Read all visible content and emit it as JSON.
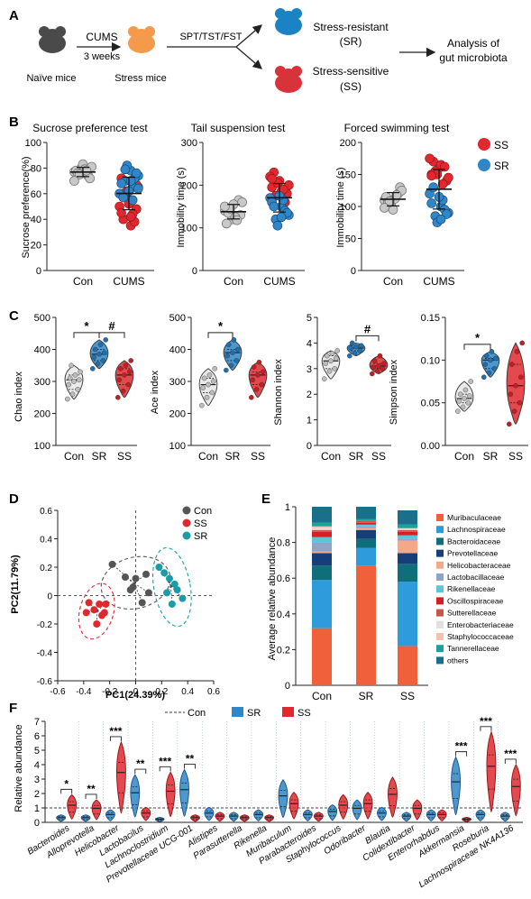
{
  "colors": {
    "con": "#c8c8c8",
    "sr": "#2f86c8",
    "ss": "#e0282e",
    "orange": "#f59a4a",
    "gray": "#555555"
  },
  "panel_a": {
    "letter": "A",
    "cums": "CUMS",
    "weeks": "3 weeks",
    "naive": "Naïve mice",
    "stress": "Stress mice",
    "tests": "SPT/TST/FST",
    "sr_line1": "Stress-resistant",
    "sr_line2": "(SR)",
    "ss_line1": "Stress-sensitive",
    "ss_line2": "(SS)",
    "analysis_line1": "Analysis of",
    "analysis_line2": "gut microbiota",
    "icons": [
      "mouse-gray-icon",
      "mouse-orange-icon",
      "mouse-blue-icon",
      "mouse-red-icon"
    ]
  },
  "panel_b": {
    "letter": "B",
    "legend": {
      "ss": "SS",
      "sr": "SR"
    },
    "charts": [
      {
        "title": "Sucrose preference test",
        "ylabel": "Sucrose preference(%)",
        "yticks": [
          "0",
          "20",
          "40",
          "60",
          "80",
          "100"
        ],
        "categories": [
          "Con",
          "CUMS"
        ]
      },
      {
        "title": "Tail suspension test",
        "ylabel": "Immobility time (s)",
        "yticks": [
          "0",
          "100",
          "200",
          "300"
        ],
        "categories": [
          "Con",
          "CUMS"
        ]
      },
      {
        "title": "Forced swimming test",
        "ylabel": "Immobility time (s)",
        "yticks": [
          "0",
          "50",
          "100",
          "150",
          "200"
        ],
        "categories": [
          "Con",
          "CUMS"
        ]
      }
    ]
  },
  "panel_c": {
    "letter": "C",
    "charts": [
      {
        "ylabel": "Chao index",
        "yticks": [
          "100",
          "200",
          "300",
          "400",
          "500"
        ],
        "categories": [
          "Con",
          "SR",
          "SS"
        ],
        "sig": [
          "*",
          "#"
        ]
      },
      {
        "ylabel": "Ace index",
        "yticks": [
          "100",
          "200",
          "300",
          "400",
          "500"
        ],
        "categories": [
          "Con",
          "SR",
          "SS"
        ],
        "sig": [
          "*"
        ]
      },
      {
        "ylabel": "Shannon index",
        "yticks": [
          "0",
          "1",
          "2",
          "3",
          "4",
          "5"
        ],
        "categories": [
          "Con",
          "SR",
          "SS"
        ],
        "sig": [
          "#"
        ]
      },
      {
        "ylabel": "Simpson index",
        "yticks": [
          "0.00",
          "0.05",
          "0.10",
          "0.15"
        ],
        "categories": [
          "Con",
          "SR",
          "SS"
        ],
        "sig": [
          "*"
        ]
      }
    ]
  },
  "panel_d": {
    "letter": "D",
    "xlabel": "PC1(24.39%)",
    "ylabel": "PC2(11.79%)",
    "xticks": [
      "-0.6",
      "-0.4",
      "-0.2",
      "0",
      "0.2",
      "0.4",
      "0.6"
    ],
    "yticks": [
      "0.6",
      "0.4",
      "0.2",
      "0",
      "-0.2",
      "-0.4",
      "-0.6"
    ],
    "legend": [
      {
        "label": "Con",
        "color": "#555555"
      },
      {
        "label": "SS",
        "color": "#e0282e"
      },
      {
        "label": "SR",
        "color": "#1a9ba8"
      }
    ]
  },
  "panel_e": {
    "letter": "E",
    "ylabel": "Average relative abundance",
    "yticks": [
      "0",
      "0.2",
      "0.4",
      "0.6",
      "0.8",
      "1"
    ],
    "categories": [
      "Con",
      "SR",
      "SS"
    ],
    "legend": [
      "Muribaculaceae",
      "Lachnospiraceae",
      "Bacteroidaceae",
      "Prevotellaceae",
      "Helicobacteraceae",
      "Lactobacillaceae",
      "Rikenellaceae",
      "Oscillospiraceae",
      "Sutterellaceae",
      "Enterobacteriaceae",
      "Staphylococcaceae",
      "Tannerellaceae",
      "others"
    ]
  },
  "panel_f": {
    "letter": "F",
    "ylabel": "Relative abundance",
    "yticks": [
      "0",
      "1",
      "2",
      "3",
      "4",
      "5",
      "6",
      "7"
    ],
    "legend": {
      "con": "Con",
      "sr": "SR",
      "ss": "SS"
    },
    "sig": [
      "*",
      "**",
      "***",
      "**",
      "***",
      "**",
      "***",
      "***",
      "***"
    ],
    "taxa": [
      "Bacteroides",
      "Alloprevotella",
      "Helicobacter",
      "Lactobacilus",
      "Lachnoclostridium",
      "Prevotellaceae UCG-001",
      "Alistipes",
      "Parasutterella",
      "Rikenella",
      "Muribaculum",
      "Parabacteroides",
      "Staphylococcus",
      "Odoribacter",
      "Blautia",
      "Colidextibacter",
      "Enterorhabdus",
      "Akkermansia",
      "Roseburia",
      "Lachnospiraceae NK4A136"
    ]
  },
  "chart_data": [
    {
      "type": "scatter",
      "title": "Sucrose preference test",
      "ylabel": "Sucrose preference(%)",
      "ylim": [
        0,
        100
      ],
      "categories": [
        "Con",
        "CUMS"
      ],
      "series": [
        {
          "name": "Con",
          "values": [
            77,
            80,
            74,
            78,
            83,
            72,
            76,
            79,
            81,
            75,
            78,
            70
          ]
        },
        {
          "name": "SR",
          "values": [
            78,
            74,
            70,
            65,
            60,
            82,
            72,
            68,
            62,
            76,
            57,
            70,
            64,
            79,
            55
          ]
        },
        {
          "name": "SS",
          "values": [
            72,
            55,
            48,
            40,
            35,
            65,
            58,
            44,
            50,
            62,
            38,
            45,
            52,
            67,
            60,
            42
          ]
        }
      ]
    },
    {
      "type": "scatter",
      "title": "Tail suspension test",
      "ylabel": "Immobility time (s)",
      "ylim": [
        0,
        300
      ],
      "categories": [
        "Con",
        "CUMS"
      ],
      "series": [
        {
          "name": "Con",
          "values": [
            140,
            120,
            165,
            110,
            155,
            130,
            135,
            125,
            160,
            145,
            118,
            150
          ]
        },
        {
          "name": "SR",
          "values": [
            150,
            130,
            120,
            165,
            170,
            105,
            140,
            160,
            175,
            135,
            150,
            125
          ]
        },
        {
          "name": "SS",
          "values": [
            195,
            210,
            180,
            230,
            185,
            200,
            175,
            190,
            220,
            205,
            160,
            215
          ]
        }
      ]
    },
    {
      "type": "scatter",
      "title": "Forced swimming test",
      "ylabel": "Immobility time (s)",
      "ylim": [
        0,
        200
      ],
      "categories": [
        "Con",
        "CUMS"
      ],
      "series": [
        {
          "name": "Con",
          "values": [
            110,
            100,
            120,
            115,
            95,
            130,
            105,
            112,
            125,
            108,
            118,
            98
          ]
        },
        {
          "name": "SR",
          "values": [
            100,
            90,
            85,
            110,
            120,
            75,
            95,
            105,
            115,
            88,
            130,
            80
          ]
        },
        {
          "name": "SS",
          "values": [
            150,
            160,
            140,
            170,
            165,
            145,
            155,
            135,
            175,
            150,
            162,
            148
          ]
        }
      ]
    },
    {
      "type": "violin",
      "ylabel": "Chao index",
      "ylim": [
        100,
        500
      ],
      "categories": [
        "Con",
        "SR",
        "SS"
      ],
      "values": [
        [
          245,
          260,
          275,
          290,
          300,
          305,
          310,
          320,
          330,
          350
        ],
        [
          340,
          355,
          365,
          375,
          385,
          390,
          400,
          415,
          430
        ],
        [
          250,
          270,
          290,
          305,
          320,
          330,
          340,
          350,
          365
        ]
      ]
    },
    {
      "type": "violin",
      "ylabel": "Ace index",
      "ylim": [
        100,
        500
      ],
      "categories": [
        "Con",
        "SR",
        "SS"
      ],
      "values": [
        [
          225,
          250,
          265,
          280,
          290,
          300,
          310,
          320,
          340
        ],
        [
          335,
          350,
          365,
          380,
          390,
          400,
          415,
          430
        ],
        [
          250,
          275,
          290,
          305,
          320,
          330,
          345,
          360
        ]
      ]
    },
    {
      "type": "violin",
      "ylabel": "Shannon index",
      "ylim": [
        0,
        5
      ],
      "categories": [
        "Con",
        "SR",
        "SS"
      ],
      "values": [
        [
          2.6,
          2.9,
          3.0,
          3.2,
          3.3,
          3.4,
          3.5,
          3.6,
          3.7
        ],
        [
          3.5,
          3.6,
          3.7,
          3.8,
          3.85,
          3.9,
          4.0
        ],
        [
          2.8,
          2.9,
          3.0,
          3.05,
          3.1,
          3.2,
          3.3,
          3.5
        ]
      ]
    },
    {
      "type": "violin",
      "ylabel": "Simpson index",
      "ylim": [
        0,
        0.15
      ],
      "categories": [
        "Con",
        "SR",
        "SS"
      ],
      "values": [
        [
          0.04,
          0.045,
          0.05,
          0.052,
          0.055,
          0.058,
          0.06,
          0.065,
          0.075
        ],
        [
          0.08,
          0.085,
          0.09,
          0.095,
          0.1,
          0.102,
          0.105,
          0.11
        ],
        [
          0.025,
          0.04,
          0.05,
          0.06,
          0.07,
          0.08,
          0.095,
          0.11,
          0.12
        ]
      ]
    },
    {
      "type": "scatter",
      "xlabel": "PC1(24.39%)",
      "ylabel": "PC2(11.79%)",
      "xlim": [
        -0.6,
        0.6
      ],
      "ylim": [
        -0.6,
        0.6
      ],
      "series": [
        {
          "name": "Con",
          "points": [
            [
              -0.18,
              0.22
            ],
            [
              -0.08,
              0.13
            ],
            [
              0.08,
              0.15
            ],
            [
              -0.04,
              0.04
            ],
            [
              0.1,
              0.02
            ],
            [
              -0.02,
              0.06
            ],
            [
              0.05,
              -0.05
            ],
            [
              0.0,
              0.12
            ]
          ]
        },
        {
          "name": "SS",
          "points": [
            [
              -0.36,
              -0.05
            ],
            [
              -0.32,
              -0.1
            ],
            [
              -0.28,
              -0.06
            ],
            [
              -0.26,
              -0.14
            ],
            [
              -0.3,
              -0.2
            ],
            [
              -0.23,
              -0.06
            ],
            [
              -0.24,
              -0.12
            ],
            [
              -0.38,
              -0.12
            ]
          ]
        },
        {
          "name": "SR",
          "points": [
            [
              0.18,
              0.2
            ],
            [
              0.26,
              0.12
            ],
            [
              0.3,
              0.08
            ],
            [
              0.24,
              0.02
            ],
            [
              0.36,
              -0.02
            ],
            [
              0.28,
              -0.06
            ],
            [
              0.32,
              0.04
            ],
            [
              0.22,
              0.16
            ]
          ]
        }
      ]
    },
    {
      "type": "bar",
      "stacked": true,
      "ylabel": "Average relative abundance",
      "ylim": [
        0,
        1
      ],
      "categories": [
        "Con",
        "SR",
        "SS"
      ],
      "series": [
        {
          "name": "Muribaculaceae",
          "values": [
            0.32,
            0.67,
            0.22
          ]
        },
        {
          "name": "Lachnospiraceae",
          "values": [
            0.27,
            0.1,
            0.36
          ]
        },
        {
          "name": "Bacteroidaceae",
          "values": [
            0.08,
            0.05,
            0.1
          ]
        },
        {
          "name": "Prevotellaceae",
          "values": [
            0.07,
            0.05,
            0.06
          ]
        },
        {
          "name": "Helicobacteraceae",
          "values": [
            0.01,
            0.01,
            0.07
          ]
        },
        {
          "name": "Lactobacillaceae",
          "values": [
            0.05,
            0.01,
            0.01
          ]
        },
        {
          "name": "Rikenellaceae",
          "values": [
            0.03,
            0.01,
            0.02
          ]
        },
        {
          "name": "Oscillospiraceae",
          "values": [
            0.03,
            0.01,
            0.02
          ]
        },
        {
          "name": "Sutterellaceae",
          "values": [
            0.01,
            0.01,
            0.01
          ]
        },
        {
          "name": "Enterobacteriaceae",
          "values": [
            0.01,
            0.0,
            0.01
          ]
        },
        {
          "name": "Staphylococcaceae",
          "values": [
            0.01,
            0.0,
            0.0
          ]
        },
        {
          "name": "Tannerellaceae",
          "values": [
            0.02,
            0.01,
            0.02
          ]
        },
        {
          "name": "others",
          "values": [
            0.09,
            0.07,
            0.08
          ]
        }
      ]
    },
    {
      "type": "violin",
      "ylabel": "Relative abundance",
      "ylim": [
        0,
        7
      ],
      "categories": [
        "Bacteroides",
        "Alloprevotella",
        "Helicobacter",
        "Lactobacilus",
        "Lachnoclostridium",
        "Prevotellaceae UCG-001",
        "Alistipes",
        "Parasutterella",
        "Rikenella",
        "Muribaculum",
        "Parabacteroides",
        "Staphylococcus",
        "Odoribacter",
        "Blautia",
        "Colidextibacter",
        "Enterorhabdus",
        "Akkermansia",
        "Roseburia",
        "Lachnospiraceae NK4A136"
      ],
      "series": [
        {
          "name": "SR",
          "medians": [
            0.3,
            0.3,
            0.5,
            1.9,
            0.2,
            2.1,
            0.6,
            0.4,
            0.5,
            1.7,
            0.5,
            0.7,
            0.9,
            0.6,
            0.4,
            0.5,
            2.6,
            0.5,
            0.4
          ]
        },
        {
          "name": "SS",
          "medians": [
            1.1,
            0.9,
            3.2,
            0.6,
            2.0,
            0.3,
            0.4,
            0.3,
            0.3,
            1.2,
            0.4,
            1.1,
            1.2,
            1.8,
            0.9,
            0.5,
            0.2,
            3.6,
            2.3
          ]
        }
      ]
    }
  ]
}
